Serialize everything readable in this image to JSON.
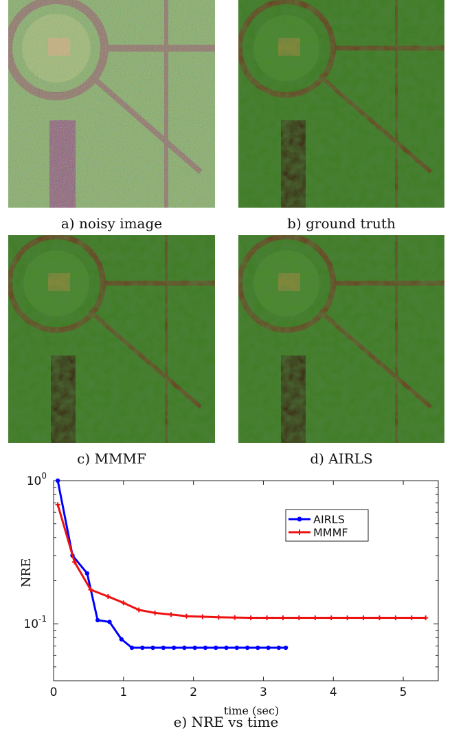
{
  "panels": [
    {
      "caption": "a) noisy image"
    },
    {
      "caption": "b) ground truth"
    },
    {
      "caption": "c) MMMF"
    },
    {
      "caption": "d) AIRLS"
    }
  ],
  "chart_caption": "e) NRE vs time",
  "colors": {
    "airls": "#0000ff",
    "mmmf": "#ee1111",
    "vegetation_dark": "#1f4a12",
    "vegetation_light": "#4d9a2a",
    "path": "#6b3a22",
    "pond": "#3a0f0a"
  },
  "chart_data": {
    "type": "line",
    "xlabel": "time (sec)",
    "ylabel": "NRE",
    "xlim": [
      0,
      5.5
    ],
    "ylim": [
      0.04,
      1.0
    ],
    "yscale": "log",
    "xticks": [
      "0",
      "1",
      "2",
      "3",
      "4",
      "5"
    ],
    "yticks": [
      "10^0",
      "10^-1"
    ],
    "grid": false,
    "legend_position": "top-right",
    "series": [
      {
        "name": "AIRLS",
        "color": "#0000ff",
        "marker": "circle",
        "x": [
          0.06,
          0.27,
          0.48,
          0.63,
          0.8,
          0.97,
          1.12,
          1.27,
          1.42,
          1.57,
          1.72,
          1.87,
          2.02,
          2.17,
          2.32,
          2.47,
          2.62,
          2.77,
          2.92,
          3.07,
          3.22,
          3.32
        ],
        "y": [
          1.0,
          0.3,
          0.225,
          0.106,
          0.103,
          0.078,
          0.068,
          0.068,
          0.068,
          0.068,
          0.068,
          0.068,
          0.068,
          0.068,
          0.068,
          0.068,
          0.068,
          0.068,
          0.068,
          0.068,
          0.068,
          0.068
        ]
      },
      {
        "name": "MMMF",
        "color": "#ee1111",
        "marker": "plus",
        "x": [
          0.06,
          0.3,
          0.53,
          0.78,
          1.0,
          1.22,
          1.45,
          1.68,
          1.9,
          2.13,
          2.36,
          2.59,
          2.82,
          3.05,
          3.28,
          3.51,
          3.74,
          3.97,
          4.2,
          4.43,
          4.66,
          4.89,
          5.12,
          5.32
        ],
        "y": [
          0.68,
          0.27,
          0.173,
          0.155,
          0.14,
          0.125,
          0.119,
          0.116,
          0.113,
          0.112,
          0.111,
          0.1105,
          0.11,
          0.11,
          0.11,
          0.11,
          0.11,
          0.11,
          0.11,
          0.11,
          0.11,
          0.11,
          0.11,
          0.11
        ]
      }
    ]
  }
}
